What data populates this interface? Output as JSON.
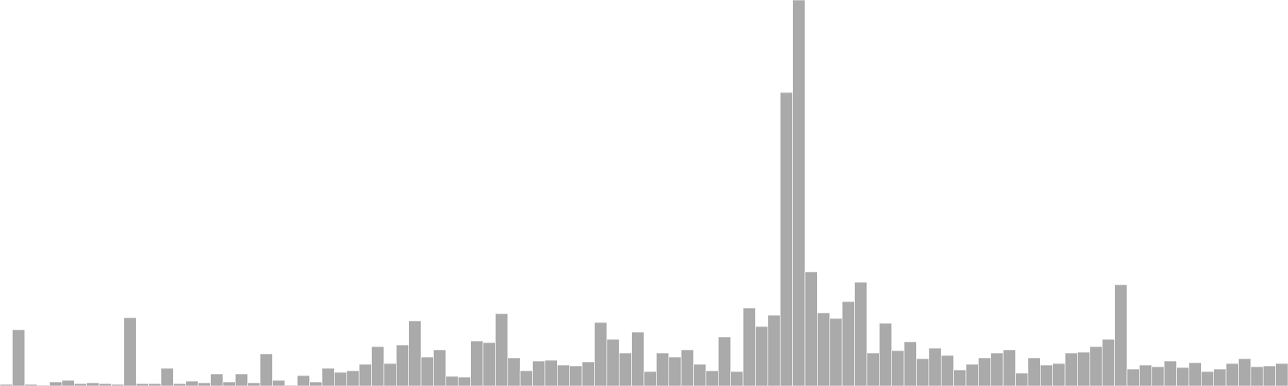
{
  "chart_data": {
    "type": "bar",
    "title": "",
    "xlabel": "",
    "ylabel": "",
    "ylim": [
      0,
      480
    ],
    "grid": false,
    "legend": "none",
    "bar_color": "#aaaaaa",
    "background": "#ffffff",
    "values": [
      2,
      70,
      2,
      1,
      5,
      7,
      3,
      4,
      3,
      2,
      85,
      3,
      3,
      22,
      3,
      6,
      4,
      15,
      5,
      15,
      4,
      40,
      7,
      1,
      13,
      5,
      22,
      17,
      19,
      27,
      49,
      28,
      51,
      81,
      36,
      45,
      12,
      11,
      56,
      54,
      90,
      35,
      19,
      31,
      32,
      26,
      25,
      30,
      79,
      58,
      41,
      67,
      18,
      41,
      36,
      45,
      27,
      19,
      61,
      18,
      97,
      74,
      88,
      365,
      480,
      142,
      91,
      84,
      105,
      129,
      41,
      78,
      44,
      55,
      34,
      47,
      38,
      20,
      27,
      35,
      41,
      45,
      16,
      35,
      26,
      28,
      41,
      42,
      49,
      58,
      126,
      21,
      26,
      24,
      31,
      23,
      29,
      18,
      21,
      28,
      34,
      24,
      25,
      28
    ]
  }
}
